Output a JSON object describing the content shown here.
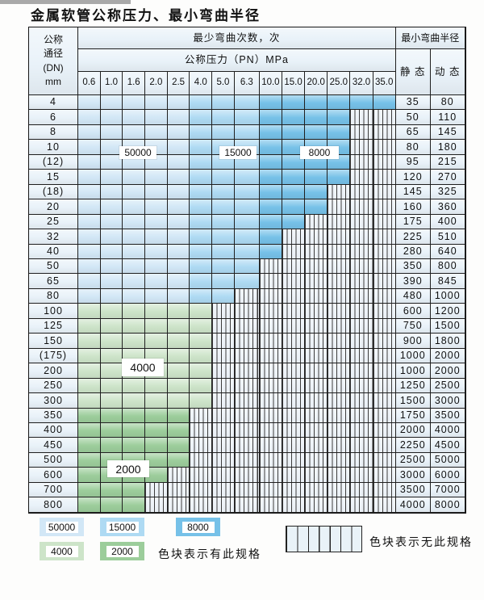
{
  "page": {
    "title": "金属软管公称压力、最小弯曲半径"
  },
  "table": {
    "header": {
      "dn_header_text": "公称\n通径\n(DN)\nmm",
      "bend_cycles_label": "最少弯曲次数，次",
      "pressure_label": "公称压力（PN）MPa",
      "min_radius_label": "最小弯曲半径",
      "static_label": "静 态",
      "dynamic_label": "动 态",
      "pressure_columns": [
        "0.6",
        "1.0",
        "1.6",
        "2.0",
        "2.5",
        "4.0",
        "5.0",
        "6.3",
        "10.0",
        "15.0",
        "20.0",
        "25.0",
        "32.0",
        "35.0"
      ]
    },
    "rows": [
      {
        "dn": "4",
        "colored_through": 13,
        "zone": "blue",
        "static": "35",
        "dynamic": "80"
      },
      {
        "dn": "6",
        "colored_through": 11,
        "zone": "blue",
        "static": "50",
        "dynamic": "110"
      },
      {
        "dn": "8",
        "colored_through": 11,
        "zone": "blue",
        "static": "65",
        "dynamic": "145"
      },
      {
        "dn": "10",
        "colored_through": 11,
        "zone": "blue",
        "static": "80",
        "dynamic": "180"
      },
      {
        "dn": "(12)",
        "colored_through": 11,
        "zone": "blue",
        "static": "95",
        "dynamic": "215"
      },
      {
        "dn": "15",
        "colored_through": 11,
        "zone": "blue",
        "static": "120",
        "dynamic": "270"
      },
      {
        "dn": "(18)",
        "colored_through": 10,
        "zone": "blue",
        "static": "145",
        "dynamic": "325"
      },
      {
        "dn": "20",
        "colored_through": 10,
        "zone": "blue",
        "static": "160",
        "dynamic": "360"
      },
      {
        "dn": "25",
        "colored_through": 9,
        "zone": "blue",
        "static": "175",
        "dynamic": "400"
      },
      {
        "dn": "32",
        "colored_through": 8,
        "zone": "blue",
        "static": "225",
        "dynamic": "510"
      },
      {
        "dn": "40",
        "colored_through": 8,
        "zone": "blue",
        "static": "280",
        "dynamic": "640"
      },
      {
        "dn": "50",
        "colored_through": 7,
        "zone": "blue",
        "static": "350",
        "dynamic": "800"
      },
      {
        "dn": "65",
        "colored_through": 7,
        "zone": "blue",
        "static": "390",
        "dynamic": "845"
      },
      {
        "dn": "80",
        "colored_through": 6,
        "zone": "blue",
        "static": "480",
        "dynamic": "1000"
      },
      {
        "dn": "100",
        "colored_through": 5,
        "zone": "g4000",
        "static": "600",
        "dynamic": "1200"
      },
      {
        "dn": "125",
        "colored_through": 5,
        "zone": "g4000",
        "static": "750",
        "dynamic": "1500"
      },
      {
        "dn": "150",
        "colored_through": 5,
        "zone": "g4000",
        "static": "900",
        "dynamic": "1800"
      },
      {
        "dn": "(175)",
        "colored_through": 5,
        "zone": "g4000",
        "static": "1000",
        "dynamic": "2000"
      },
      {
        "dn": "200",
        "colored_through": 5,
        "zone": "g4000",
        "static": "1000",
        "dynamic": "2000"
      },
      {
        "dn": "250",
        "colored_through": 5,
        "zone": "g4000",
        "static": "1250",
        "dynamic": "2500"
      },
      {
        "dn": "300",
        "colored_through": 5,
        "zone": "g4000",
        "static": "1500",
        "dynamic": "3000"
      },
      {
        "dn": "350",
        "colored_through": 4,
        "zone": "g2000",
        "static": "1750",
        "dynamic": "3500"
      },
      {
        "dn": "400",
        "colored_through": 4,
        "zone": "g2000",
        "static": "2000",
        "dynamic": "4000"
      },
      {
        "dn": "450",
        "colored_through": 4,
        "zone": "g2000",
        "static": "2250",
        "dynamic": "4500"
      },
      {
        "dn": "500",
        "colored_through": 4,
        "zone": "g2000",
        "static": "2500",
        "dynamic": "5000"
      },
      {
        "dn": "600",
        "colored_through": 3,
        "zone": "g2000",
        "static": "3000",
        "dynamic": "6000"
      },
      {
        "dn": "700",
        "colored_through": 2,
        "zone": "g2000",
        "static": "3500",
        "dynamic": "7000"
      },
      {
        "dn": "800",
        "colored_through": 2,
        "zone": "g2000",
        "static": "4000",
        "dynamic": "8000"
      }
    ],
    "zone_labels": [
      "50000",
      "15000",
      "8000",
      "4000",
      "2000"
    ]
  },
  "legend": {
    "swatch_labels": [
      "50000",
      "15000",
      "8000",
      "4000",
      "2000"
    ],
    "has_spec_text": "色块表示有此规格",
    "no_spec_text": "色块表示无此规格"
  },
  "colors": {
    "c50000": "#d2e7f6",
    "c15000": "#aedaf3",
    "c8000": "#76c1e8",
    "c4000": "#cde4c9",
    "c2000": "#9ccd9b",
    "header_fill": "#e9f2f9",
    "hatch_bg": "#eef4fa",
    "grid_line": "#1f1f1f"
  }
}
